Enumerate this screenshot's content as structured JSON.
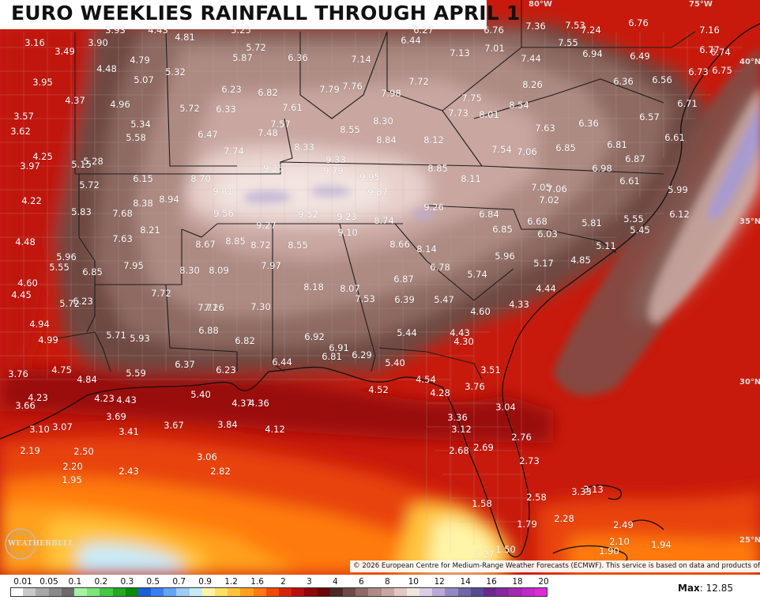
{
  "title": "EURO WEEKLIES RAINFALL THROUGH APRIL 1",
  "copyright": "© 2026 European Centre for Medium-Range Weather Forecasts (ECMWF). This service is based on data and products of the ECMWF.",
  "logo_text": "WEATHERBELL",
  "max_label": "Max",
  "max_value": "12.85",
  "coords": {
    "lon_80": "80°W",
    "lon_75": "75°W",
    "lat_40": "40°N",
    "lat_35": "35°N",
    "lat_30": "30°N",
    "lat_25": "25°N"
  },
  "colors": {
    "brand_dark_red": "#8b0a0a",
    "land_brown": "#6e4a42",
    "light_pink": "#e8d0cc",
    "lavender": "#9b93c9",
    "state_line": "#222222",
    "county_line": "#bfb0ab"
  },
  "legend": {
    "labels": [
      "0.01",
      "0.05",
      "0.1",
      "0.2",
      "0.3",
      "0.5",
      "0.7",
      "0.9",
      "1.2",
      "1.6",
      "2",
      "3",
      "4",
      "6",
      "8",
      "10",
      "12",
      "14",
      "16",
      "18",
      "20"
    ],
    "colors": [
      "#ffffff",
      "#c9c9c9",
      "#a8a8a8",
      "#8a8a8a",
      "#6c6c6c",
      "#a5f3a0",
      "#7fe27a",
      "#45c645",
      "#22a822",
      "#0b8a0b",
      "#1c5fd6",
      "#3b7ef0",
      "#68a4f5",
      "#9ecbf8",
      "#c6ecfb",
      "#fff5a8",
      "#ffe066",
      "#ffc43a",
      "#ffa01c",
      "#ff7a10",
      "#f04a0a",
      "#d8220a",
      "#b80e0e",
      "#8e0808",
      "#68070a",
      "#4a2a24",
      "#6e4a42",
      "#8e6a62",
      "#ad8a82",
      "#c9a6a0",
      "#e2c6c0",
      "#f2e4e0",
      "#d8cee6",
      "#b7aad6",
      "#9588c2",
      "#7464aa",
      "#5a4a94",
      "#6a2a8a",
      "#852a9e",
      "#a22ab2",
      "#c228c8",
      "#dc2ad8"
    ]
  },
  "values": [
    {
      "t": "3.16"
    },
    {
      "t": "3.90"
    },
    {
      "t": "3.93"
    },
    {
      "t": "4.43"
    },
    {
      "t": "4.81"
    },
    {
      "t": "5.25"
    },
    {
      "t": "5.72"
    },
    {
      "t": "5.87"
    },
    {
      "t": "6.36"
    },
    {
      "t": "7.14"
    },
    {
      "t": "6.44"
    },
    {
      "t": "6.27"
    },
    {
      "t": "7.13"
    },
    {
      "t": "7.01"
    },
    {
      "t": "6.76"
    },
    {
      "t": "7.36"
    },
    {
      "t": "7.53"
    },
    {
      "t": "7.24"
    },
    {
      "t": "6.76"
    },
    {
      "t": "7.16"
    },
    {
      "t": "3.49"
    },
    {
      "t": "4.48"
    },
    {
      "t": "4.79"
    },
    {
      "t": "5.32"
    },
    {
      "t": "7.55"
    },
    {
      "t": "6.94"
    },
    {
      "t": "6.49"
    },
    {
      "t": "6.74"
    },
    {
      "t": "6.77"
    },
    {
      "t": "3.95"
    },
    {
      "t": "5.07"
    },
    {
      "t": "7.79"
    },
    {
      "t": "7.76"
    },
    {
      "t": "7.72"
    },
    {
      "t": "7.44"
    },
    {
      "t": "6.75"
    },
    {
      "t": "6.73"
    },
    {
      "t": "4.37"
    },
    {
      "t": "4.96"
    },
    {
      "t": "5.72"
    },
    {
      "t": "6.23"
    },
    {
      "t": "6.82"
    },
    {
      "t": "7.98"
    },
    {
      "t": "8.26"
    },
    {
      "t": "6.36"
    },
    {
      "t": "6.56"
    },
    {
      "t": "6.33"
    },
    {
      "t": "7.61"
    },
    {
      "t": "7.75"
    },
    {
      "t": "8.54"
    },
    {
      "t": "6.71"
    },
    {
      "t": "3.57"
    },
    {
      "t": "5.34"
    },
    {
      "t": "7.57"
    },
    {
      "t": "8.30"
    },
    {
      "t": "7.73"
    },
    {
      "t": "8.01"
    },
    {
      "t": "6.57"
    },
    {
      "t": "3.62"
    },
    {
      "t": "5.58"
    },
    {
      "t": "6.47"
    },
    {
      "t": "7.48"
    },
    {
      "t": "8.55"
    },
    {
      "t": "7.63"
    },
    {
      "t": "6.36"
    },
    {
      "t": "8.84"
    },
    {
      "t": "8.12"
    },
    {
      "t": "6.61"
    },
    {
      "t": "8.33"
    },
    {
      "t": "7.74"
    },
    {
      "t": "7.54"
    },
    {
      "t": "7.06"
    },
    {
      "t": "6.85"
    },
    {
      "t": "6.81"
    },
    {
      "t": "4.25"
    },
    {
      "t": "5.15"
    },
    {
      "t": "5.28"
    },
    {
      "t": "9.33"
    },
    {
      "t": "6.87"
    },
    {
      "t": "3.97"
    },
    {
      "t": "9.25"
    },
    {
      "t": "9.79"
    },
    {
      "t": "8.85"
    },
    {
      "t": "6.98"
    },
    {
      "t": "6.15"
    },
    {
      "t": "8.70"
    },
    {
      "t": "9.95"
    },
    {
      "t": "8.11"
    },
    {
      "t": "6.61"
    },
    {
      "t": "5.72"
    },
    {
      "t": "9.81"
    },
    {
      "t": "9.87"
    },
    {
      "t": "7.05"
    },
    {
      "t": "7.06"
    },
    {
      "t": "5.99"
    },
    {
      "t": "4.22"
    },
    {
      "t": "8.94"
    },
    {
      "t": "7.02"
    },
    {
      "t": "8.38"
    },
    {
      "t": "9.26"
    },
    {
      "t": "6.12"
    },
    {
      "t": "5.83"
    },
    {
      "t": "7.68"
    },
    {
      "t": "9.56"
    },
    {
      "t": "9.52"
    },
    {
      "t": "9.23"
    },
    {
      "t": "6.84"
    },
    {
      "t": "8.74"
    },
    {
      "t": "6.68"
    },
    {
      "t": "5.81"
    },
    {
      "t": "5.55"
    },
    {
      "t": "9.27"
    },
    {
      "t": "8.21"
    },
    {
      "t": "9.10"
    },
    {
      "t": "6.85"
    },
    {
      "t": "6.03"
    },
    {
      "t": "5.45"
    },
    {
      "t": "4.48"
    },
    {
      "t": "7.63"
    },
    {
      "t": "8.85"
    },
    {
      "t": "8.67"
    },
    {
      "t": "8.72"
    },
    {
      "t": "8.55"
    },
    {
      "t": "8.66"
    },
    {
      "t": "8.14"
    },
    {
      "t": "5.11"
    },
    {
      "t": "5.96"
    },
    {
      "t": "5.96"
    },
    {
      "t": "5.55"
    },
    {
      "t": "6.85"
    },
    {
      "t": "7.95"
    },
    {
      "t": "8.30"
    },
    {
      "t": "8.09"
    },
    {
      "t": "7.97"
    },
    {
      "t": "6.78"
    },
    {
      "t": "5.17"
    },
    {
      "t": "4.85"
    },
    {
      "t": "4.60"
    },
    {
      "t": "5.74"
    },
    {
      "t": "6.87"
    },
    {
      "t": "4.45"
    },
    {
      "t": "7.72"
    },
    {
      "t": "8.18"
    },
    {
      "t": "8.07"
    },
    {
      "t": "4.44"
    },
    {
      "t": "5.72"
    },
    {
      "t": "6.23"
    },
    {
      "t": "7.71"
    },
    {
      "t": "7.26"
    },
    {
      "t": "7.30"
    },
    {
      "t": "7.53"
    },
    {
      "t": "6.39"
    },
    {
      "t": "5.47"
    },
    {
      "t": "4.33"
    },
    {
      "t": "4.94"
    },
    {
      "t": "4.60"
    },
    {
      "t": "6.88"
    },
    {
      "t": "5.71"
    },
    {
      "t": "5.93"
    },
    {
      "t": "4.99"
    },
    {
      "t": "5.44"
    },
    {
      "t": "4.43"
    },
    {
      "t": "6.82"
    },
    {
      "t": "6.92"
    },
    {
      "t": "4.30"
    },
    {
      "t": "6.91"
    },
    {
      "t": "6.81"
    },
    {
      "t": "6.29"
    },
    {
      "t": "3.76"
    },
    {
      "t": "4.75"
    },
    {
      "t": "6.37"
    },
    {
      "t": "6.44"
    },
    {
      "t": "5.40"
    },
    {
      "t": "3.51"
    },
    {
      "t": "5.59"
    },
    {
      "t": "6.23"
    },
    {
      "t": "4.84"
    },
    {
      "t": "4.54"
    },
    {
      "t": "4.23"
    },
    {
      "t": "5.40"
    },
    {
      "t": "4.52"
    },
    {
      "t": "3.76"
    },
    {
      "t": "4.23"
    },
    {
      "t": "4.43"
    },
    {
      "t": "4.28"
    },
    {
      "t": "3.66"
    },
    {
      "t": "4.37"
    },
    {
      "t": "4.36"
    },
    {
      "t": "3.04"
    },
    {
      "t": "3.69"
    },
    {
      "t": "3.36"
    },
    {
      "t": "3.10"
    },
    {
      "t": "3.07"
    },
    {
      "t": "3.67"
    },
    {
      "t": "3.84"
    },
    {
      "t": "4.12"
    },
    {
      "t": "3.41"
    },
    {
      "t": "3.12"
    },
    {
      "t": "2.76"
    },
    {
      "t": "2.19"
    },
    {
      "t": "2.50"
    },
    {
      "t": "3.06"
    },
    {
      "t": "2.68"
    },
    {
      "t": "2.69"
    },
    {
      "t": "2.20"
    },
    {
      "t": "2.73"
    },
    {
      "t": "2.43"
    },
    {
      "t": "2.82"
    },
    {
      "t": "1.95"
    },
    {
      "t": "3.33"
    },
    {
      "t": "3.13"
    },
    {
      "t": "2.58"
    },
    {
      "t": "1.58"
    },
    {
      "t": "2.28"
    },
    {
      "t": "1.79"
    },
    {
      "t": "2.49"
    },
    {
      "t": "2.10"
    },
    {
      "t": "1.94"
    },
    {
      "t": "1.90"
    },
    {
      "t": "1.27"
    },
    {
      "t": "1.50"
    }
  ]
}
